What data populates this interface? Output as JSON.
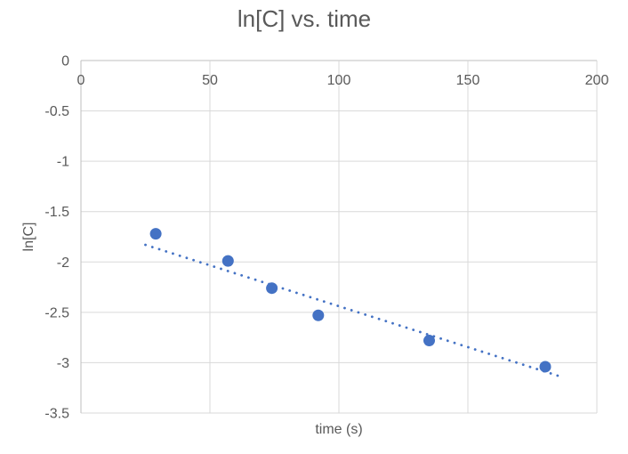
{
  "chart_data": {
    "type": "scatter",
    "title": "ln[C] vs. time",
    "xlabel": "time (s)",
    "ylabel": "ln[C]",
    "xlim": [
      0,
      200
    ],
    "ylim": [
      -3.5,
      0
    ],
    "x_axis_position": "top (at y=0)",
    "x_ticks": [
      0,
      50,
      100,
      150,
      200
    ],
    "x_tick_labels": [
      "0",
      "50",
      "100",
      "150",
      "200"
    ],
    "y_ticks": [
      0,
      -0.5,
      -1,
      -1.5,
      -2,
      -2.5,
      -3,
      -3.5
    ],
    "y_tick_labels": [
      "0",
      "-0.5",
      "-1",
      "-1.5",
      "-2",
      "-2.5",
      "-3",
      "-3.5"
    ],
    "grid": true,
    "legend": "none",
    "series": [
      {
        "name": "ln[C] data points",
        "type": "scatter",
        "marker": "circle",
        "color": "#4472C4",
        "points": [
          {
            "x": 29,
            "y": -1.72
          },
          {
            "x": 57,
            "y": -1.99
          },
          {
            "x": 74,
            "y": -2.26
          },
          {
            "x": 92,
            "y": -2.53
          },
          {
            "x": 135,
            "y": -2.78
          },
          {
            "x": 180,
            "y": -3.04
          }
        ]
      },
      {
        "name": "linear trendline",
        "type": "dotted-line",
        "color": "#4472C4",
        "points": [
          {
            "x": 25,
            "y": -1.83
          },
          {
            "x": 185,
            "y": -3.13
          }
        ]
      }
    ],
    "colors": {
      "marker": "#4472C4",
      "trendline": "#4472C4",
      "text": "#595959",
      "gridline": "#D9D9D9",
      "axis_line": "#BFBFBF",
      "background": "#FFFFFF"
    }
  }
}
